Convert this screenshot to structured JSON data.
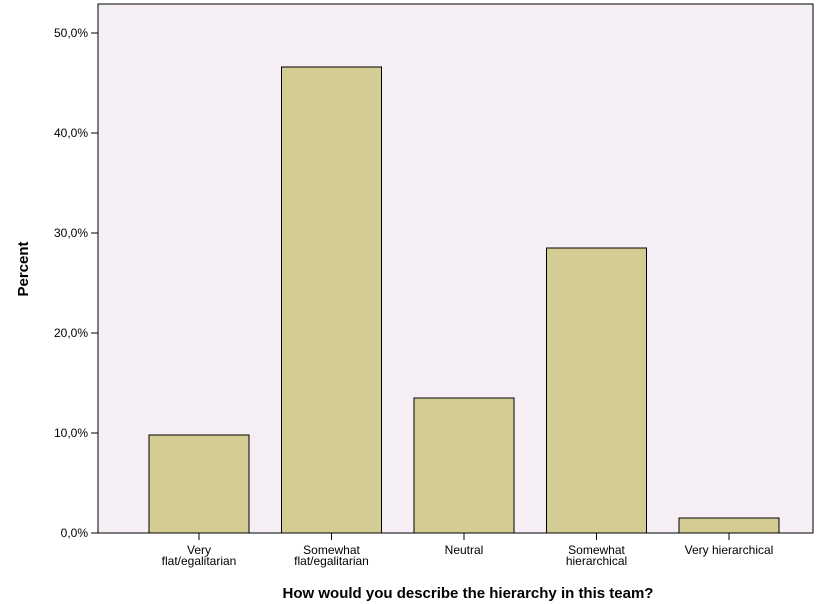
{
  "chart_data": {
    "type": "bar",
    "categories": [
      [
        "Very",
        "flat/egalitarian"
      ],
      [
        "Somewhat",
        "flat/egalitarian"
      ],
      [
        "Neutral"
      ],
      [
        "Somewhat",
        "hierarchical"
      ],
      [
        "Very hierarchical"
      ]
    ],
    "values": [
      9.8,
      46.6,
      13.5,
      28.5,
      1.5
    ],
    "xlabel": "How would you describe the hierarchy in this team?",
    "ylabel": "Percent",
    "ylim": [
      0,
      50
    ],
    "yticks": [
      "0,0%",
      "10,0%",
      "20,0%",
      "30,0%",
      "40,0%",
      "50,0%"
    ],
    "grid": false,
    "colors": {
      "bar_fill": "#d3cd94",
      "bar_stroke": "#000000",
      "plot_background": "#f5eef5"
    }
  }
}
